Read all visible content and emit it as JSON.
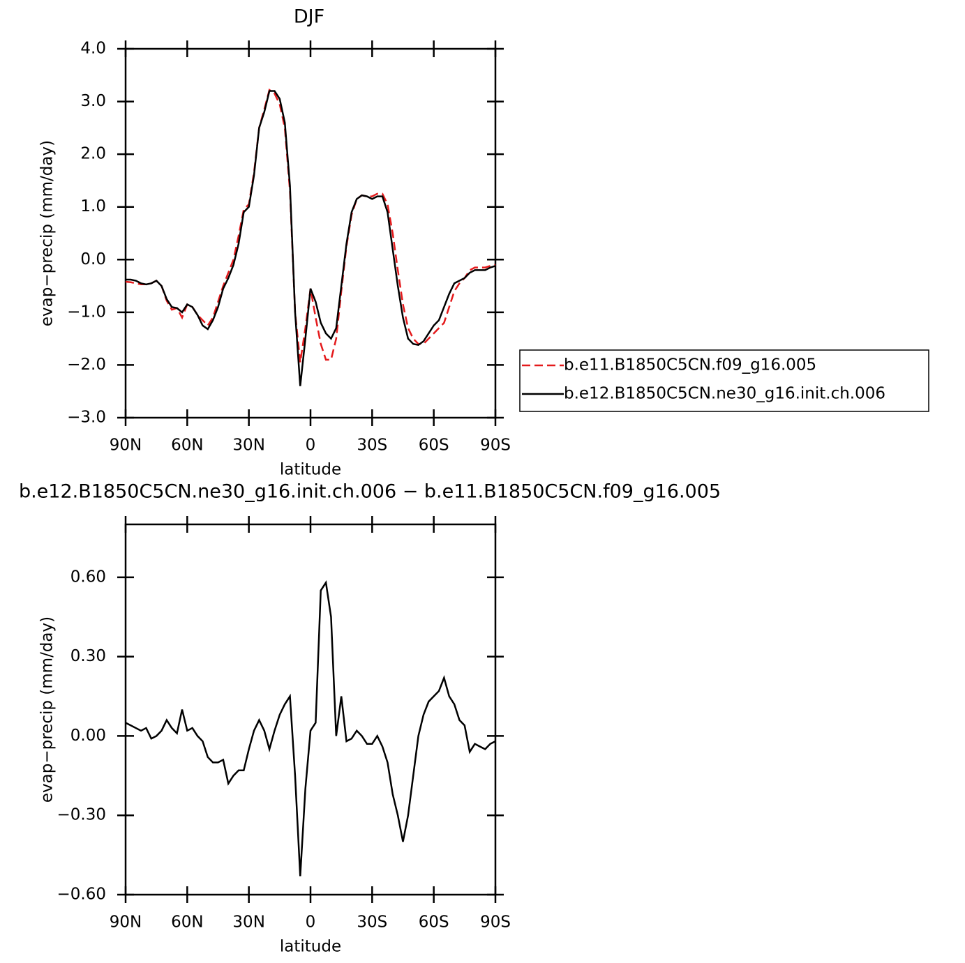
{
  "chart_data": [
    {
      "type": "line",
      "title": "DJF",
      "xlabel": "latitude",
      "ylabel": "evap−precip (mm/day)",
      "x": [
        90,
        87.5,
        85,
        82.5,
        80,
        77.5,
        75,
        72.5,
        70,
        67.5,
        65,
        62.5,
        60,
        57.5,
        55,
        52.5,
        50,
        47.5,
        45,
        42.5,
        40,
        37.5,
        35,
        32.5,
        30,
        27.5,
        25,
        22.5,
        20,
        17.5,
        15,
        12.5,
        10,
        7.5,
        5,
        2.5,
        0,
        -2.5,
        -5,
        -7.5,
        -10,
        -12.5,
        -15,
        -17.5,
        -20,
        -22.5,
        -25,
        -27.5,
        -30,
        -32.5,
        -35,
        -37.5,
        -40,
        -42.5,
        -45,
        -47.5,
        -50,
        -52.5,
        -55,
        -57.5,
        -60,
        -62.5,
        -65,
        -67.5,
        -70,
        -72.5,
        -75,
        -77.5,
        -80,
        -82.5,
        -85,
        -87.5,
        -90
      ],
      "xlim": [
        90,
        -90
      ],
      "xticks": [
        {
          "value": 90,
          "label": "90N"
        },
        {
          "value": 60,
          "label": "60N"
        },
        {
          "value": 30,
          "label": "30N"
        },
        0,
        {
          "value": -30,
          "label": "30S"
        },
        {
          "value": -60,
          "label": "60S"
        },
        {
          "value": -90,
          "label": "90S"
        }
      ],
      "ylim": [
        -3,
        4
      ],
      "yticks": [
        {
          "value": 4,
          "label": "4.0"
        },
        {
          "value": 3,
          "label": "3.0"
        },
        {
          "value": 2,
          "label": "2.0"
        },
        {
          "value": 1,
          "label": "1.0"
        },
        {
          "value": 0,
          "label": "0.0"
        },
        {
          "value": -1,
          "label": "−1.0"
        },
        {
          "value": -2,
          "label": "−2.0"
        },
        {
          "value": -3,
          "label": "−3.0"
        }
      ],
      "legend": "right",
      "series": [
        {
          "name": "b.e11.B1850C5CN.f09_g16.005",
          "color": "#e41a1c",
          "dash": true,
          "values": [
            -0.42,
            -0.43,
            -0.45,
            -0.47,
            -0.47,
            -0.45,
            -0.4,
            -0.5,
            -0.78,
            -0.95,
            -0.92,
            -1.1,
            -0.85,
            -0.9,
            -1.05,
            -1.15,
            -1.25,
            -1.1,
            -0.8,
            -0.5,
            -0.25,
            0,
            0.45,
            0.95,
            1.05,
            1.65,
            2.5,
            2.85,
            3.22,
            3.15,
            2.95,
            2.5,
            1.3,
            -1.0,
            -1.95,
            -1.3,
            -0.55,
            -1.1,
            -1.6,
            -1.9,
            -1.9,
            -1.5,
            -0.6,
            0.25,
            0.85,
            1.15,
            1.22,
            1.2,
            1.2,
            1.25,
            1.25,
            1.05,
            0.5,
            -0.2,
            -0.85,
            -1.3,
            -1.5,
            -1.6,
            -1.6,
            -1.5,
            -1.4,
            -1.3,
            -1.2,
            -0.9,
            -0.6,
            -0.45,
            -0.35,
            -0.2,
            -0.15,
            -0.15,
            -0.15,
            -0.12,
            -0.1
          ]
        },
        {
          "name": "b.e12.B1850C5CN.ne30_g16.init.ch.006",
          "color": "#000000",
          "dash": false,
          "values": [
            -0.38,
            -0.38,
            -0.4,
            -0.45,
            -0.47,
            -0.45,
            -0.4,
            -0.5,
            -0.75,
            -0.9,
            -0.92,
            -1.0,
            -0.85,
            -0.9,
            -1.05,
            -1.25,
            -1.32,
            -1.15,
            -0.9,
            -0.55,
            -0.35,
            -0.1,
            0.3,
            0.9,
            1.0,
            1.6,
            2.5,
            2.8,
            3.2,
            3.2,
            3.05,
            2.6,
            1.4,
            -1.0,
            -2.4,
            -1.5,
            -0.55,
            -0.8,
            -1.2,
            -1.4,
            -1.5,
            -1.3,
            -0.5,
            0.3,
            0.9,
            1.15,
            1.22,
            1.2,
            1.15,
            1.2,
            1.2,
            0.9,
            0.2,
            -0.5,
            -1.1,
            -1.5,
            -1.6,
            -1.62,
            -1.55,
            -1.4,
            -1.25,
            -1.15,
            -0.9,
            -0.65,
            -0.45,
            -0.4,
            -0.35,
            -0.25,
            -0.2,
            -0.2,
            -0.2,
            -0.15,
            -0.12
          ]
        }
      ]
    },
    {
      "type": "line",
      "title": "b.e12.B1850C5CN.ne30_g16.init.ch.006 − b.e11.B1850C5CN.f09_g16.005",
      "xlabel": "latitude",
      "ylabel": "evap−precip (mm/day)",
      "x": [
        90,
        87.5,
        85,
        82.5,
        80,
        77.5,
        75,
        72.5,
        70,
        67.5,
        65,
        62.5,
        60,
        57.5,
        55,
        52.5,
        50,
        47.5,
        45,
        42.5,
        40,
        37.5,
        35,
        32.5,
        30,
        27.5,
        25,
        22.5,
        20,
        17.5,
        15,
        12.5,
        10,
        7.5,
        5,
        2.5,
        0,
        -2.5,
        -5,
        -7.5,
        -10,
        -12.5,
        -15,
        -17.5,
        -20,
        -22.5,
        -25,
        -27.5,
        -30,
        -32.5,
        -35,
        -37.5,
        -40,
        -42.5,
        -45,
        -47.5,
        -50,
        -52.5,
        -55,
        -57.5,
        -60,
        -62.5,
        -65,
        -67.5,
        -70,
        -72.5,
        -75,
        -77.5,
        -80,
        -82.5,
        -85,
        -87.5,
        -90
      ],
      "xlim": [
        90,
        -90
      ],
      "xticks": [
        {
          "value": 90,
          "label": "90N"
        },
        {
          "value": 60,
          "label": "60N"
        },
        {
          "value": 30,
          "label": "30N"
        },
        0,
        {
          "value": -30,
          "label": "30S"
        },
        {
          "value": -60,
          "label": "60S"
        },
        {
          "value": -90,
          "label": "90S"
        }
      ],
      "ylim": [
        -0.6,
        0.8
      ],
      "yticks": [
        {
          "value": 0.6,
          "label": "0.60"
        },
        {
          "value": 0.3,
          "label": "0.30"
        },
        {
          "value": 0,
          "label": "0.00"
        },
        {
          "value": -0.3,
          "label": "−0.30"
        },
        {
          "value": -0.6,
          "label": "−0.60"
        }
      ],
      "series": [
        {
          "color": "#000000",
          "dash": false,
          "values": [
            0.05,
            0.04,
            0.03,
            0.02,
            0.03,
            -0.01,
            0.0,
            0.02,
            0.06,
            0.03,
            0.01,
            0.1,
            0.02,
            0.03,
            0.0,
            -0.02,
            -0.08,
            -0.1,
            -0.1,
            -0.09,
            -0.18,
            -0.15,
            -0.13,
            -0.13,
            -0.05,
            0.02,
            0.06,
            0.02,
            -0.05,
            0.02,
            0.08,
            0.12,
            0.15,
            -0.15,
            -0.53,
            -0.2,
            0.02,
            0.05,
            0.55,
            0.58,
            0.45,
            0.0,
            0.15,
            -0.02,
            -0.01,
            0.02,
            0.0,
            -0.03,
            -0.03,
            0.0,
            -0.04,
            -0.1,
            -0.22,
            -0.3,
            -0.4,
            -0.3,
            -0.15,
            0.0,
            0.08,
            0.13,
            0.15,
            0.17,
            0.22,
            0.15,
            0.12,
            0.06,
            0.04,
            -0.06,
            -0.03,
            -0.04,
            -0.05,
            -0.03,
            -0.02
          ]
        }
      ]
    }
  ]
}
